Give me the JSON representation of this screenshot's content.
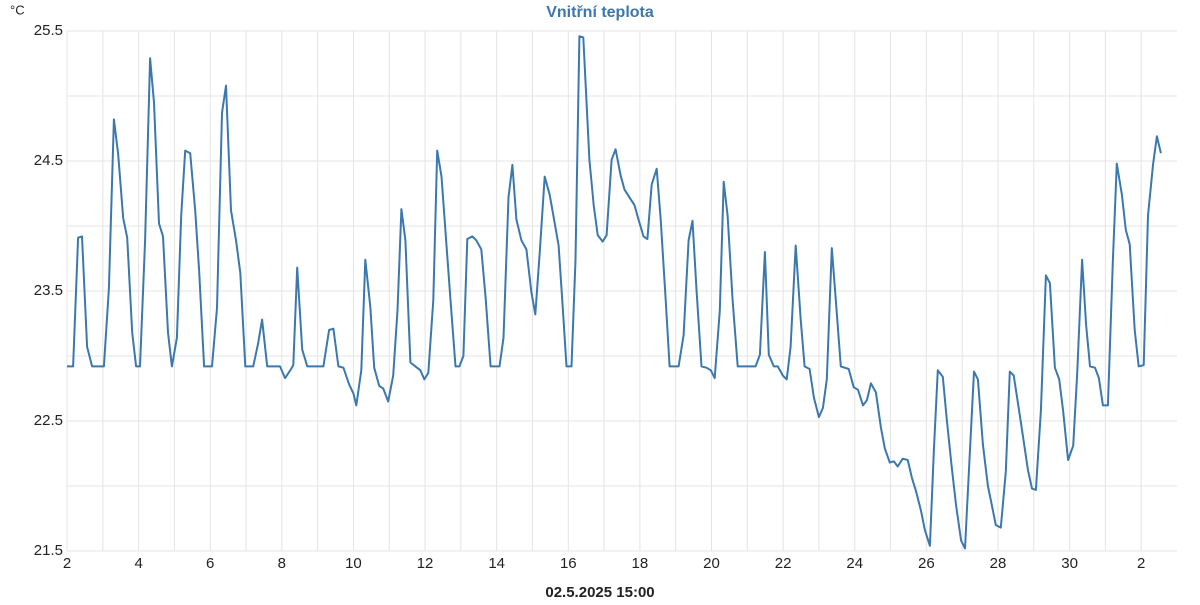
{
  "chart_data": {
    "type": "line",
    "title": "Vnitřní teplota",
    "y_unit": "°C",
    "x_label": "02.5.2025 15:00",
    "color": "#3b78ae",
    "grid": true,
    "xlim": [
      2,
      33
    ],
    "ylim": [
      21.5,
      25.5
    ],
    "xticks": [
      2,
      4,
      6,
      8,
      10,
      12,
      14,
      16,
      18,
      20,
      22,
      24,
      26,
      28,
      30,
      {
        "value": 32,
        "label": "2"
      }
    ],
    "minor_xticks": [
      3,
      5,
      7,
      9,
      11,
      13,
      15,
      17,
      19,
      21,
      23,
      25,
      27,
      29,
      31
    ],
    "yticks": [
      21.5,
      22.5,
      23.5,
      24.5,
      25.5
    ],
    "minor_yticks": [
      22,
      23,
      24,
      25
    ],
    "x": [
      2.0,
      2.17,
      2.31,
      2.42,
      2.56,
      2.7,
      3.03,
      3.17,
      3.31,
      3.43,
      3.57,
      3.68,
      3.82,
      3.93,
      4.04,
      4.18,
      4.32,
      4.43,
      4.57,
      4.68,
      4.82,
      4.93,
      5.07,
      5.19,
      5.3,
      5.44,
      5.58,
      5.69,
      5.83,
      6.05,
      6.19,
      6.33,
      6.44,
      6.58,
      6.72,
      6.84,
      6.98,
      7.2,
      7.34,
      7.45,
      7.59,
      7.95,
      8.09,
      8.26,
      8.32,
      8.43,
      8.57,
      8.71,
      9.16,
      9.32,
      9.44,
      9.58,
      9.72,
      9.88,
      10.0,
      10.08,
      10.22,
      10.33,
      10.47,
      10.58,
      10.72,
      10.83,
      10.97,
      11.11,
      11.23,
      11.34,
      11.45,
      11.59,
      11.73,
      11.87,
      11.98,
      12.09,
      12.23,
      12.34,
      12.46,
      12.6,
      12.71,
      12.85,
      12.96,
      13.07,
      13.18,
      13.32,
      13.43,
      13.57,
      13.69,
      13.83,
      14.08,
      14.19,
      14.33,
      14.44,
      14.55,
      14.69,
      14.83,
      14.97,
      15.08,
      15.2,
      15.34,
      15.48,
      15.59,
      15.73,
      15.84,
      15.95,
      16.09,
      16.2,
      16.31,
      16.42,
      16.59,
      16.71,
      16.82,
      16.96,
      17.07,
      17.21,
      17.32,
      17.46,
      17.57,
      17.71,
      17.85,
      17.96,
      18.1,
      18.21,
      18.33,
      18.47,
      18.58,
      18.72,
      18.83,
      19.08,
      19.22,
      19.36,
      19.47,
      19.58,
      19.72,
      19.86,
      19.98,
      20.09,
      20.23,
      20.34,
      20.45,
      20.59,
      20.73,
      21.23,
      21.35,
      21.49,
      21.6,
      21.74,
      21.85,
      21.99,
      22.1,
      22.21,
      22.35,
      22.49,
      22.6,
      22.74,
      22.86,
      23.0,
      23.11,
      23.22,
      23.36,
      23.47,
      23.61,
      23.83,
      23.97,
      24.09,
      24.23,
      24.34,
      24.45,
      24.59,
      24.73,
      24.84,
      24.98,
      25.09,
      25.2,
      25.34,
      25.48,
      25.6,
      25.71,
      25.85,
      25.96,
      26.1,
      26.21,
      26.32,
      26.46,
      26.57,
      26.71,
      26.83,
      26.97,
      27.08,
      27.22,
      27.33,
      27.44,
      27.58,
      27.72,
      27.83,
      27.94,
      28.08,
      28.22,
      28.33,
      28.44,
      28.59,
      28.7,
      28.84,
      28.95,
      29.06,
      29.2,
      29.34,
      29.45,
      29.59,
      29.71,
      29.82,
      29.96,
      30.1,
      30.21,
      30.35,
      30.46,
      30.57,
      30.71,
      30.82,
      30.93,
      31.07,
      31.21,
      31.32,
      31.46,
      31.57,
      31.68,
      31.82,
      31.93,
      32.07,
      32.19,
      32.33,
      32.44,
      32.55
    ],
    "values": [
      22.92,
      22.92,
      23.91,
      23.92,
      23.07,
      22.92,
      22.92,
      23.52,
      24.82,
      24.55,
      24.06,
      23.91,
      23.18,
      22.92,
      22.92,
      23.89,
      25.29,
      24.95,
      24.02,
      23.92,
      23.18,
      22.92,
      23.14,
      24.08,
      24.58,
      24.56,
      24.12,
      23.66,
      22.92,
      22.92,
      23.37,
      24.87,
      25.08,
      24.12,
      23.89,
      23.64,
      22.92,
      22.92,
      23.1,
      23.28,
      22.92,
      22.92,
      22.83,
      22.9,
      22.93,
      23.68,
      23.05,
      22.92,
      22.92,
      23.2,
      23.21,
      22.92,
      22.91,
      22.78,
      22.71,
      22.62,
      22.89,
      23.74,
      23.38,
      22.91,
      22.77,
      22.75,
      22.65,
      22.85,
      23.35,
      24.13,
      23.89,
      22.95,
      22.92,
      22.89,
      22.82,
      22.87,
      23.43,
      24.58,
      24.38,
      23.85,
      23.43,
      22.92,
      22.92,
      23.0,
      23.9,
      23.92,
      23.89,
      23.82,
      23.45,
      22.92,
      22.92,
      23.14,
      24.22,
      24.47,
      24.05,
      23.89,
      23.82,
      23.49,
      23.32,
      23.78,
      24.38,
      24.24,
      24.07,
      23.85,
      23.39,
      22.92,
      22.92,
      23.74,
      25.46,
      25.45,
      24.51,
      24.16,
      23.93,
      23.88,
      23.93,
      24.51,
      24.59,
      24.39,
      24.28,
      24.22,
      24.16,
      24.05,
      23.92,
      23.9,
      24.32,
      24.44,
      24.05,
      23.43,
      22.92,
      22.92,
      23.16,
      23.89,
      24.04,
      23.51,
      22.92,
      22.91,
      22.89,
      22.83,
      23.35,
      24.34,
      24.08,
      23.43,
      22.92,
      22.92,
      23.01,
      23.8,
      23.01,
      22.92,
      22.92,
      22.85,
      22.82,
      23.07,
      23.85,
      23.28,
      22.92,
      22.9,
      22.68,
      22.53,
      22.6,
      22.82,
      23.83,
      23.43,
      22.92,
      22.9,
      22.76,
      22.74,
      22.62,
      22.66,
      22.79,
      22.72,
      22.45,
      22.29,
      22.18,
      22.19,
      22.15,
      22.21,
      22.2,
      22.06,
      21.96,
      21.81,
      21.66,
      21.54,
      22.28,
      22.89,
      22.84,
      22.51,
      22.14,
      21.85,
      21.58,
      21.52,
      22.28,
      22.88,
      22.82,
      22.32,
      22.0,
      21.85,
      21.7,
      21.68,
      22.11,
      22.88,
      22.85,
      22.58,
      22.38,
      22.12,
      21.98,
      21.97,
      22.58,
      23.62,
      23.56,
      22.91,
      22.82,
      22.58,
      22.2,
      22.31,
      22.85,
      23.74,
      23.24,
      22.92,
      22.91,
      22.83,
      22.62,
      22.62,
      23.74,
      24.48,
      24.24,
      23.97,
      23.86,
      23.2,
      22.92,
      22.93,
      24.08,
      24.47,
      24.69,
      24.56
    ]
  }
}
